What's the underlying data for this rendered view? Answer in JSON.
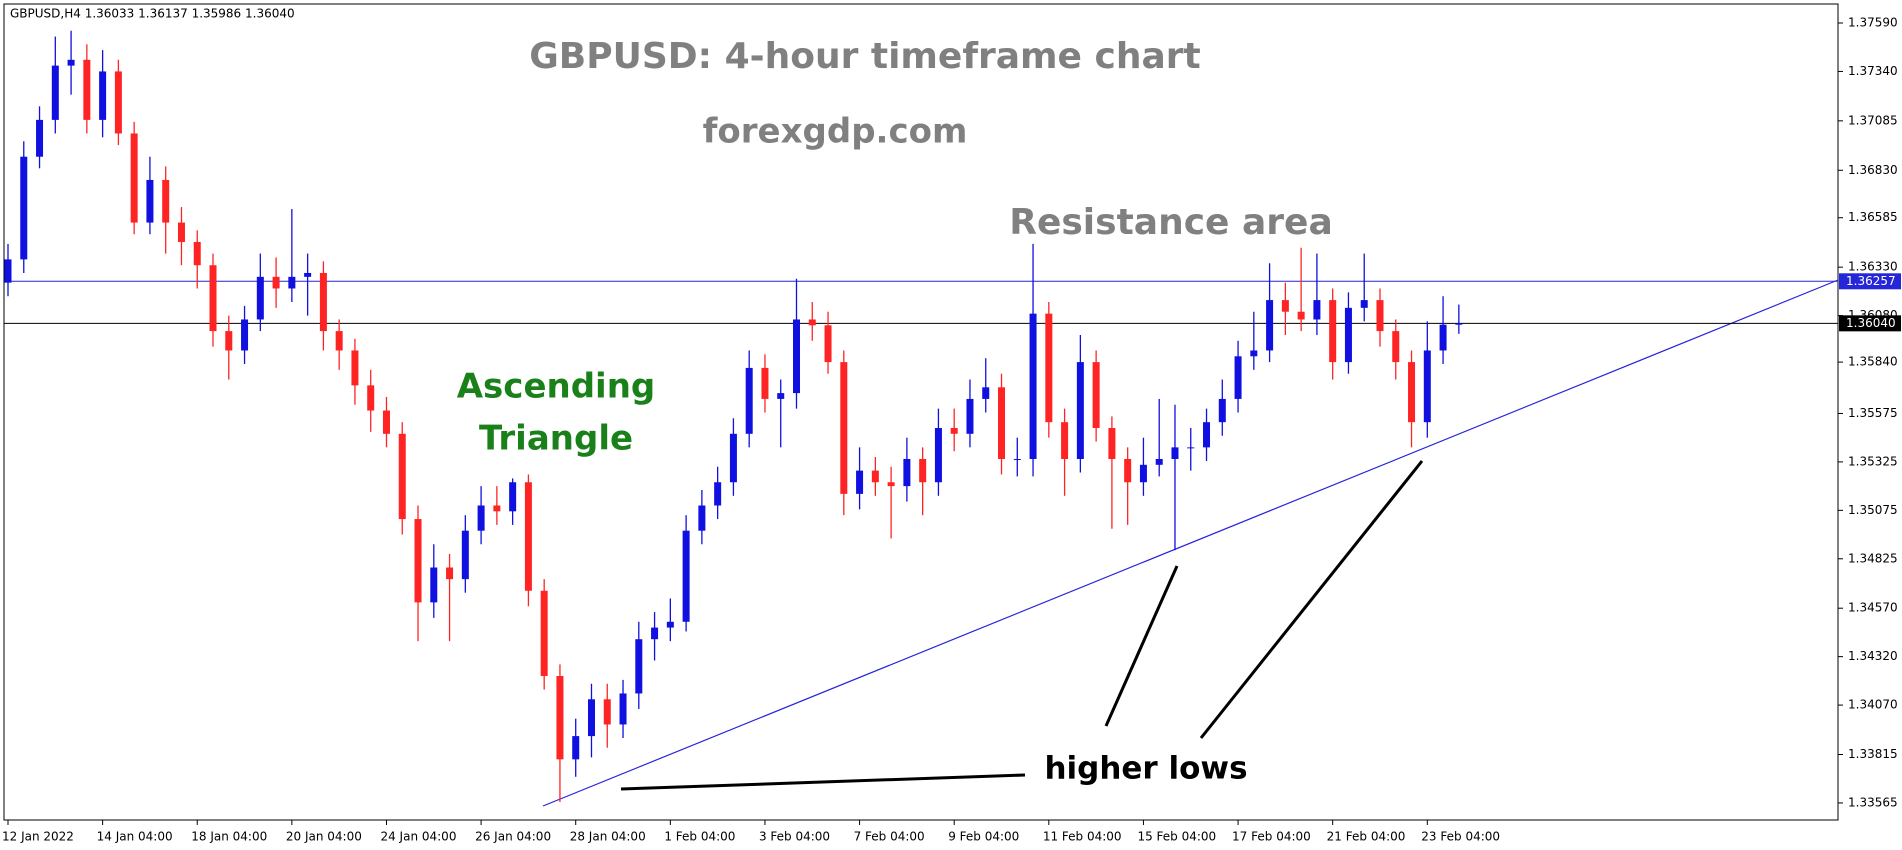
{
  "chart_data": {
    "type": "candlestick",
    "header": "GBPUSD,H4  1.36033 1.36137 1.35986 1.36040",
    "title": "GBPUSD: 4-hour timeframe chart",
    "subtitle": "forexgdp.com",
    "annotations": [
      "Resistance area",
      "Ascending",
      "Triangle",
      "higher lows"
    ],
    "up_color": "#1010e0",
    "down_color": "#ff2424",
    "ylim": [
      1.33477,
      1.37688
    ],
    "yticks": [
      {
        "value": 1.3759,
        "label": "1.37590"
      },
      {
        "value": 1.3734,
        "label": "1.37340"
      },
      {
        "value": 1.37085,
        "label": "1.37085"
      },
      {
        "value": 1.3683,
        "label": "1.36830"
      },
      {
        "value": 1.36585,
        "label": "1.36585"
      },
      {
        "value": 1.3633,
        "label": "1.36330"
      },
      {
        "value": 1.3608,
        "label": "1.36080"
      },
      {
        "value": 1.3584,
        "label": "1.35840"
      },
      {
        "value": 1.35575,
        "label": "1.35575"
      },
      {
        "value": 1.35325,
        "label": "1.35325"
      },
      {
        "value": 1.35075,
        "label": "1.35075"
      },
      {
        "value": 1.34825,
        "label": "1.34825"
      },
      {
        "value": 1.3457,
        "label": "1.34570"
      },
      {
        "value": 1.3432,
        "label": "1.34320"
      },
      {
        "value": 1.3407,
        "label": "1.34070"
      },
      {
        "value": 1.33815,
        "label": "1.33815"
      },
      {
        "value": 1.33565,
        "label": "1.33565"
      }
    ],
    "hlines": [
      {
        "value": 1.36257,
        "label": "1.36257",
        "color": "#2626d9"
      },
      {
        "value": 1.3604,
        "label": "1.36040",
        "color": "#000000"
      }
    ],
    "categories": [
      "12 Jan 2022",
      null,
      null,
      null,
      null,
      null,
      "14 Jan 04:00",
      null,
      null,
      null,
      null,
      null,
      "18 Jan 04:00",
      null,
      null,
      null,
      null,
      null,
      "20 Jan 04:00",
      null,
      null,
      null,
      null,
      null,
      "24 Jan 04:00",
      null,
      null,
      null,
      null,
      null,
      "26 Jan 04:00",
      null,
      null,
      null,
      null,
      null,
      "28 Jan 04:00",
      null,
      null,
      null,
      null,
      null,
      "1 Feb 04:00",
      null,
      null,
      null,
      null,
      null,
      "3 Feb 04:00",
      null,
      null,
      null,
      null,
      null,
      "7 Feb 04:00",
      null,
      null,
      null,
      null,
      null,
      "9 Feb 04:00",
      null,
      null,
      null,
      null,
      null,
      "11 Feb 04:00",
      null,
      null,
      null,
      null,
      null,
      "15 Feb 04:00",
      null,
      null,
      null,
      null,
      null,
      "17 Feb 04:00",
      null,
      null,
      null,
      null,
      null,
      "21 Feb 04:00",
      null,
      null,
      null,
      null,
      null,
      "23 Feb 04:00",
      null,
      null
    ],
    "ohlc": [
      [
        1.3625,
        1.3645,
        1.3618,
        1.3637
      ],
      [
        1.3637,
        1.3698,
        1.363,
        1.369
      ],
      [
        1.369,
        1.3716,
        1.3684,
        1.3709
      ],
      [
        1.3709,
        1.3752,
        1.3702,
        1.3737
      ],
      [
        1.3737,
        1.3755,
        1.3722,
        1.374
      ],
      [
        1.374,
        1.3748,
        1.3702,
        1.3709
      ],
      [
        1.3709,
        1.3745,
        1.37,
        1.3734
      ],
      [
        1.3734,
        1.374,
        1.3696,
        1.3702
      ],
      [
        1.3702,
        1.3708,
        1.365,
        1.3656
      ],
      [
        1.3656,
        1.369,
        1.365,
        1.3678
      ],
      [
        1.3678,
        1.3685,
        1.364,
        1.3656
      ],
      [
        1.3656,
        1.3664,
        1.3634,
        1.3646
      ],
      [
        1.3646,
        1.3652,
        1.3622,
        1.3634
      ],
      [
        1.3634,
        1.364,
        1.3592,
        1.36
      ],
      [
        1.36,
        1.3608,
        1.3575,
        1.359
      ],
      [
        1.359,
        1.3613,
        1.3583,
        1.3606
      ],
      [
        1.3606,
        1.364,
        1.36,
        1.3628
      ],
      [
        1.3628,
        1.3638,
        1.3612,
        1.3622
      ],
      [
        1.3622,
        1.3663,
        1.3615,
        1.3628
      ],
      [
        1.3628,
        1.364,
        1.3608,
        1.363
      ],
      [
        1.363,
        1.3636,
        1.359,
        1.36
      ],
      [
        1.36,
        1.3606,
        1.358,
        1.359
      ],
      [
        1.359,
        1.3596,
        1.3562,
        1.3572
      ],
      [
        1.3572,
        1.358,
        1.3548,
        1.3559
      ],
      [
        1.3559,
        1.3566,
        1.354,
        1.3547
      ],
      [
        1.3547,
        1.3553,
        1.3495,
        1.3503
      ],
      [
        1.3503,
        1.351,
        1.344,
        1.346
      ],
      [
        1.346,
        1.349,
        1.3452,
        1.3478
      ],
      [
        1.3478,
        1.3485,
        1.344,
        1.3472
      ],
      [
        1.3472,
        1.3505,
        1.3465,
        1.3497
      ],
      [
        1.3497,
        1.352,
        1.349,
        1.351
      ],
      [
        1.351,
        1.352,
        1.35,
        1.3507
      ],
      [
        1.3507,
        1.3524,
        1.35,
        1.3522
      ],
      [
        1.3522,
        1.3526,
        1.3458,
        1.3466
      ],
      [
        1.3466,
        1.3472,
        1.3415,
        1.3422
      ],
      [
        1.3422,
        1.3428,
        1.3357,
        1.3379
      ],
      [
        1.3379,
        1.34,
        1.337,
        1.3391
      ],
      [
        1.3391,
        1.3418,
        1.338,
        1.341
      ],
      [
        1.341,
        1.3418,
        1.3385,
        1.3397
      ],
      [
        1.3397,
        1.342,
        1.339,
        1.3413
      ],
      [
        1.3413,
        1.345,
        1.3405,
        1.3441
      ],
      [
        1.3441,
        1.3455,
        1.343,
        1.3447
      ],
      [
        1.3447,
        1.3462,
        1.344,
        1.345
      ],
      [
        1.345,
        1.3505,
        1.3445,
        1.3497
      ],
      [
        1.3497,
        1.3518,
        1.349,
        1.351
      ],
      [
        1.351,
        1.353,
        1.3503,
        1.3522
      ],
      [
        1.3522,
        1.3555,
        1.3515,
        1.3547
      ],
      [
        1.3547,
        1.359,
        1.354,
        1.3581
      ],
      [
        1.3581,
        1.3588,
        1.3558,
        1.3565
      ],
      [
        1.3565,
        1.3575,
        1.354,
        1.3568
      ],
      [
        1.3568,
        1.3627,
        1.356,
        1.3606
      ],
      [
        1.3606,
        1.3615,
        1.3595,
        1.3603
      ],
      [
        1.3603,
        1.361,
        1.3578,
        1.3584
      ],
      [
        1.3584,
        1.359,
        1.3505,
        1.3516
      ],
      [
        1.3516,
        1.354,
        1.3508,
        1.3528
      ],
      [
        1.3528,
        1.3535,
        1.3515,
        1.3522
      ],
      [
        1.3522,
        1.353,
        1.3493,
        1.352
      ],
      [
        1.352,
        1.3545,
        1.3512,
        1.3534
      ],
      [
        1.3534,
        1.354,
        1.3505,
        1.3522
      ],
      [
        1.3522,
        1.356,
        1.3515,
        1.355
      ],
      [
        1.355,
        1.356,
        1.3538,
        1.3547
      ],
      [
        1.3547,
        1.3575,
        1.354,
        1.3565
      ],
      [
        1.3565,
        1.3586,
        1.3558,
        1.3571
      ],
      [
        1.3571,
        1.3578,
        1.3526,
        1.3534
      ],
      [
        1.3534,
        1.3545,
        1.3525,
        1.3534
      ],
      [
        1.3534,
        1.3645,
        1.3525,
        1.3609
      ],
      [
        1.3609,
        1.3615,
        1.3545,
        1.3553
      ],
      [
        1.3553,
        1.356,
        1.3515,
        1.3534
      ],
      [
        1.3534,
        1.3598,
        1.3527,
        1.3584
      ],
      [
        1.3584,
        1.359,
        1.3543,
        1.355
      ],
      [
        1.355,
        1.3556,
        1.3498,
        1.3534
      ],
      [
        1.3534,
        1.354,
        1.35,
        1.3522
      ],
      [
        1.3522,
        1.3545,
        1.3515,
        1.3531
      ],
      [
        1.3531,
        1.3565,
        1.3525,
        1.3534
      ],
      [
        1.3534,
        1.3562,
        1.3487,
        1.354
      ],
      [
        1.354,
        1.355,
        1.3528,
        1.354
      ],
      [
        1.354,
        1.356,
        1.3533,
        1.3553
      ],
      [
        1.3553,
        1.3575,
        1.3546,
        1.3565
      ],
      [
        1.3565,
        1.3595,
        1.3558,
        1.3587
      ],
      [
        1.3587,
        1.361,
        1.358,
        1.359
      ],
      [
        1.359,
        1.3635,
        1.3584,
        1.3616
      ],
      [
        1.3616,
        1.3625,
        1.3598,
        1.361
      ],
      [
        1.361,
        1.3643,
        1.36,
        1.3606
      ],
      [
        1.3606,
        1.364,
        1.3598,
        1.3616
      ],
      [
        1.3616,
        1.3622,
        1.3575,
        1.3584
      ],
      [
        1.3584,
        1.362,
        1.3578,
        1.3612
      ],
      [
        1.3612,
        1.364,
        1.3605,
        1.3616
      ],
      [
        1.3616,
        1.3622,
        1.3592,
        1.36
      ],
      [
        1.36,
        1.3606,
        1.3575,
        1.3584
      ],
      [
        1.3584,
        1.359,
        1.354,
        1.3553
      ],
      [
        1.3553,
        1.3605,
        1.3545,
        1.359
      ],
      [
        1.359,
        1.3618,
        1.3583,
        1.36033
      ],
      [
        1.36033,
        1.36137,
        1.35986,
        1.3604
      ]
    ]
  }
}
